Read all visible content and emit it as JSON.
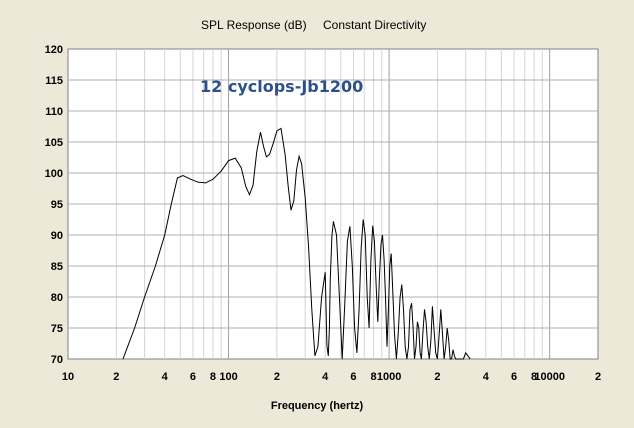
{
  "chart_data": {
    "type": "line",
    "title": "SPL Response (dB)",
    "subtitle": "Constant Directivity",
    "xlabel": "Frequency (hertz)",
    "ylabel": "",
    "annotation": "12 cyclops-Jb1200",
    "xscale": "log",
    "xlim": [
      10,
      20000
    ],
    "ylim": [
      70,
      120
    ],
    "grid": true,
    "background_color": "#ffffff",
    "line_color": "#000000",
    "ytick_values": [
      70,
      75,
      80,
      85,
      90,
      95,
      100,
      105,
      110,
      115,
      120
    ],
    "ytick_labels": [
      "70",
      "75",
      "80",
      "85",
      "90",
      "95",
      "100",
      "105",
      "110",
      "115",
      "120"
    ],
    "xtick_values": [
      10,
      20,
      40,
      60,
      80,
      100,
      200,
      400,
      600,
      800,
      1000,
      2000,
      4000,
      6000,
      8000,
      10000,
      20000
    ],
    "xtick_labels": [
      "10",
      "2",
      "4",
      "6",
      "8",
      "100",
      "2",
      "4",
      "6",
      "8",
      "1000",
      "2",
      "4",
      "6",
      "8",
      "10000",
      "2"
    ],
    "series": [
      {
        "x": [
          22,
          26,
          30,
          35,
          40,
          44,
          48,
          52,
          58,
          65,
          72,
          80,
          90,
          100,
          110,
          120,
          128,
          135,
          142,
          150,
          158,
          165,
          172,
          180,
          190,
          200,
          212,
          225,
          235,
          245,
          255,
          265,
          275,
          285,
          300,
          315,
          330,
          345,
          360,
          380,
          400,
          410,
          418,
          425,
          430,
          440,
          450,
          470,
          490,
          510,
          530,
          550,
          570,
          590,
          610,
          630,
          650,
          670,
          690,
          710,
          730,
          750,
          770,
          790,
          810,
          830,
          850,
          870,
          890,
          910,
          930,
          950,
          970,
          990,
          1010,
          1030,
          1050,
          1080,
          1110,
          1140,
          1170,
          1200,
          1230,
          1260,
          1290,
          1320,
          1350,
          1380,
          1410,
          1440,
          1470,
          1500,
          1530,
          1560,
          1590,
          1620,
          1660,
          1700,
          1740,
          1780,
          1820,
          1860,
          1900,
          1950,
          2000,
          2050,
          2100,
          2150,
          2200,
          2250,
          2300,
          2350,
          2400,
          2450,
          2500,
          2550,
          2600,
          2700,
          2800,
          2900,
          3000,
          3100,
          3200
        ],
        "y": [
          70,
          75,
          80,
          85,
          90,
          95,
          99.2,
          99.6,
          99.0,
          98.5,
          98.4,
          99.0,
          100.3,
          102.0,
          102.4,
          100.8,
          97.8,
          96.5,
          98.0,
          103.5,
          106.6,
          104.3,
          102.6,
          103.0,
          104.8,
          106.8,
          107.2,
          103.0,
          98.0,
          94.0,
          95.5,
          100.5,
          102.7,
          101.5,
          96.0,
          88.0,
          78.0,
          70.5,
          72.0,
          80.0,
          84.0,
          72.2,
          70.5,
          75.0,
          83.0,
          89.8,
          92.2,
          90.0,
          80.0,
          70.0,
          79.0,
          89.0,
          91.4,
          85.0,
          75.0,
          71.0,
          78.0,
          88.0,
          92.5,
          90.0,
          80.0,
          75.0,
          86.0,
          91.5,
          89.0,
          82.0,
          76.0,
          83.0,
          88.5,
          90.0,
          86.0,
          80.0,
          72.0,
          78.0,
          85.0,
          87.0,
          82.0,
          74.0,
          70.0,
          74.0,
          80.0,
          82.0,
          78.0,
          72.0,
          70.0,
          72.0,
          78.0,
          79.0,
          75.0,
          70.0,
          72.0,
          76.0,
          75.0,
          71.0,
          70.0,
          74.0,
          78.0,
          76.0,
          72.0,
          70.0,
          73.0,
          78.5,
          75.0,
          71.0,
          70.0,
          74.0,
          78.0,
          74.0,
          70.0,
          72.0,
          75.0,
          73.0,
          70.0,
          70.0,
          71.5,
          70.5,
          70.0,
          70.0,
          70.0,
          70.0,
          71.0,
          70.5,
          70.0
        ]
      }
    ]
  }
}
